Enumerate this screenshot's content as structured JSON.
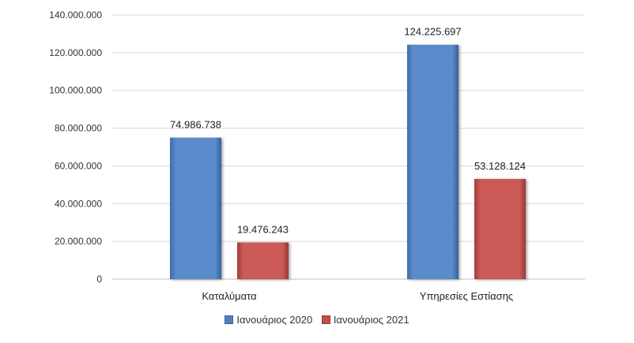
{
  "chart_data": {
    "type": "bar",
    "categories": [
      "Καταλύματα",
      "Υπηρεσίες Εστίασης"
    ],
    "series": [
      {
        "name": "Ιανουάριος 2020",
        "values": [
          74986738,
          124225697
        ],
        "labels": [
          "74.986.738",
          "124.225.697"
        ],
        "color": "#4f81bd"
      },
      {
        "name": "Ιανουάριος 2021",
        "values": [
          19476243,
          53128124
        ],
        "labels": [
          "19.476.243",
          "53.128.124"
        ],
        "color": "#c0504d"
      }
    ],
    "ylim": [
      0,
      140000000
    ],
    "yticks": [
      0,
      20000000,
      40000000,
      60000000,
      80000000,
      100000000,
      120000000,
      140000000
    ],
    "ytick_labels": [
      "0",
      "20.000.000",
      "40.000.000",
      "60.000.000",
      "80.000.000",
      "100.000.000",
      "120.000.000",
      "140.000.000"
    ],
    "grid": true,
    "legend_position": "bottom"
  }
}
